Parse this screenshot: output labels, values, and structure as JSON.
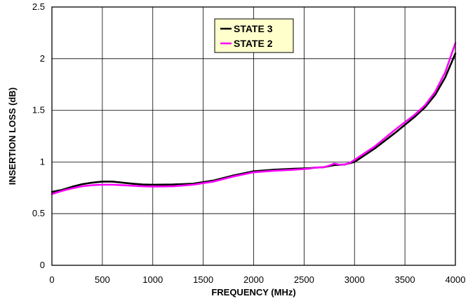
{
  "chart_data": {
    "type": "line",
    "title": "",
    "xlabel": "FREQUENCY (MHz)",
    "ylabel": "INSERTION LOSS (dB)",
    "xlim": [
      0,
      4000
    ],
    "ylim": [
      0,
      2.5
    ],
    "x_ticks": [
      "0",
      "500",
      "1000",
      "1500",
      "2000",
      "2500",
      "3000",
      "3500",
      "4000"
    ],
    "y_ticks": [
      "0",
      "0.5",
      "1",
      "1.5",
      "2",
      "2.5"
    ],
    "grid": true,
    "legend_position": "top-center",
    "series": [
      {
        "name": "STATE 3",
        "color": "#000000",
        "x": [
          0,
          100,
          200,
          300,
          400,
          500,
          600,
          700,
          800,
          900,
          1000,
          1200,
          1400,
          1600,
          1800,
          2000,
          2200,
          2400,
          2550,
          2600,
          2700,
          2800,
          2900,
          3000,
          3200,
          3400,
          3600,
          3700,
          3800,
          3900,
          4000
        ],
        "values": [
          0.71,
          0.73,
          0.76,
          0.785,
          0.8,
          0.81,
          0.81,
          0.8,
          0.79,
          0.782,
          0.78,
          0.782,
          0.79,
          0.82,
          0.87,
          0.91,
          0.925,
          0.935,
          0.94,
          0.945,
          0.95,
          0.97,
          0.975,
          1.0,
          1.13,
          1.28,
          1.44,
          1.53,
          1.65,
          1.82,
          2.05
        ]
      },
      {
        "name": "STATE 2",
        "color": "#ff00ff",
        "x": [
          0,
          100,
          200,
          300,
          400,
          500,
          600,
          700,
          800,
          900,
          1000,
          1200,
          1400,
          1600,
          1800,
          2000,
          2200,
          2400,
          2550,
          2600,
          2700,
          2750,
          2800,
          2850,
          2900,
          2950,
          3000,
          3200,
          3400,
          3600,
          3700,
          3800,
          3900,
          4000
        ],
        "values": [
          0.69,
          0.72,
          0.745,
          0.765,
          0.775,
          0.78,
          0.78,
          0.775,
          0.77,
          0.765,
          0.762,
          0.765,
          0.78,
          0.81,
          0.86,
          0.9,
          0.915,
          0.925,
          0.935,
          0.945,
          0.95,
          0.965,
          0.985,
          0.975,
          0.975,
          0.99,
          1.02,
          1.15,
          1.31,
          1.46,
          1.55,
          1.68,
          1.87,
          2.15
        ]
      }
    ]
  }
}
